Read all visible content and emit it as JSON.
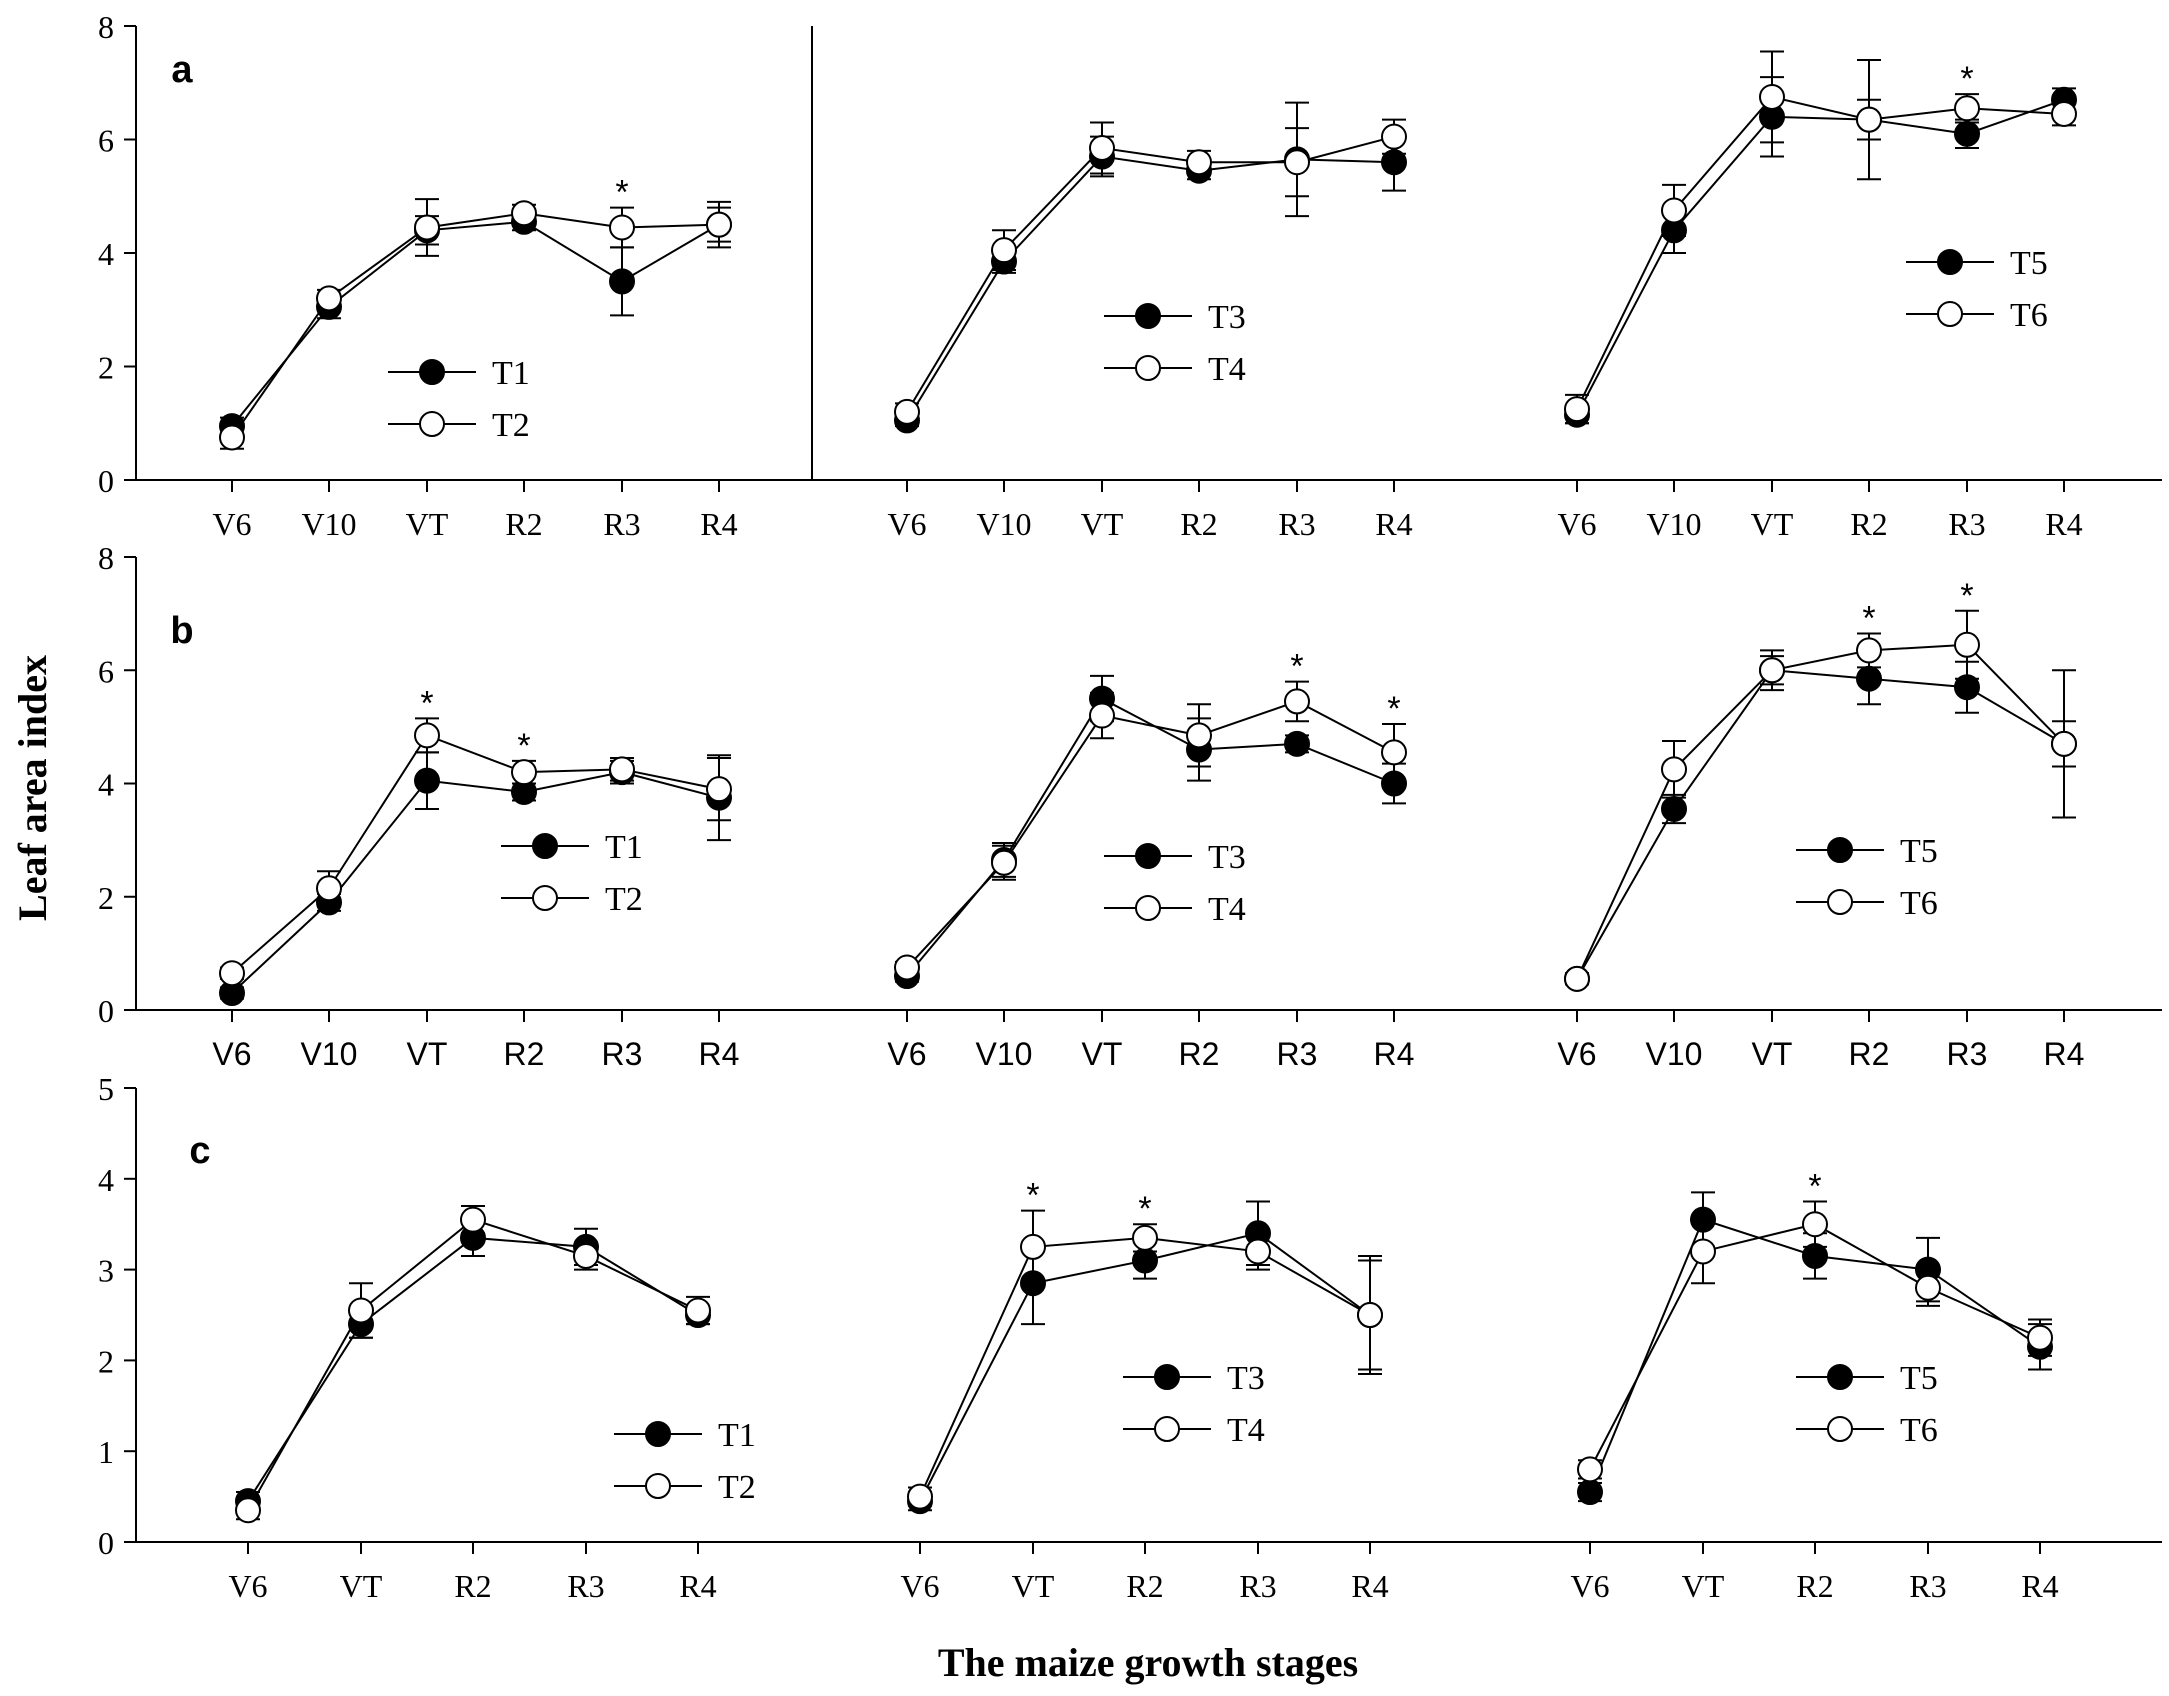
{
  "chart_data": {
    "type": "line",
    "ylabel": "Leaf area index",
    "xlabel": "The maize growth stages",
    "significance_marker": "*",
    "colors": {
      "filled": "#000000",
      "open": "#ffffff",
      "line": "#000000"
    },
    "rows": [
      {
        "label": "a",
        "ylim": [
          0,
          8
        ],
        "yticks": [
          "0",
          "2",
          "4",
          "6",
          "8"
        ],
        "categories": [
          "V6",
          "V10",
          "VT",
          "R2",
          "R3",
          "R4"
        ],
        "panels": [
          {
            "legend_position": "center-bottom",
            "series": [
              {
                "name": "T1",
                "marker": "filled",
                "values": [
                  0.95,
                  3.05,
                  4.4,
                  4.55,
                  3.5,
                  4.5
                ],
                "errors": [
                  0.15,
                  0.2,
                  0.25,
                  0.15,
                  0.6,
                  0.3
                ]
              },
              {
                "name": "T2",
                "marker": "open",
                "values": [
                  0.75,
                  3.2,
                  4.45,
                  4.7,
                  4.45,
                  4.5
                ],
                "errors": [
                  0.2,
                  0.15,
                  0.5,
                  0.15,
                  0.35,
                  0.4
                ]
              }
            ],
            "significant": [
              "R3"
            ]
          },
          {
            "legend_position": "center",
            "series": [
              {
                "name": "T3",
                "marker": "filled",
                "values": [
                  1.05,
                  3.85,
                  5.7,
                  5.45,
                  5.65,
                  5.6
                ],
                "errors": [
                  0.1,
                  0.2,
                  0.35,
                  0.15,
                  1.0,
                  0.5
                ]
              },
              {
                "name": "T4",
                "marker": "open",
                "values": [
                  1.2,
                  4.05,
                  5.85,
                  5.6,
                  5.6,
                  6.05
                ],
                "errors": [
                  0.15,
                  0.35,
                  0.45,
                  0.2,
                  0.6,
                  0.3
                ]
              }
            ],
            "significant": []
          },
          {
            "legend_position": "right",
            "series": [
              {
                "name": "T5",
                "marker": "filled",
                "values": [
                  1.15,
                  4.4,
                  6.4,
                  6.35,
                  6.1,
                  6.7
                ],
                "errors": [
                  0.15,
                  0.4,
                  0.7,
                  1.05,
                  0.25,
                  0.2
                ]
              },
              {
                "name": "T6",
                "marker": "open",
                "values": [
                  1.25,
                  4.75,
                  6.75,
                  6.35,
                  6.55,
                  6.45
                ],
                "errors": [
                  0.25,
                  0.45,
                  0.8,
                  0.35,
                  0.25,
                  0.2
                ]
              }
            ],
            "significant": [
              "R3"
            ]
          }
        ]
      },
      {
        "label": "b",
        "ylim": [
          0,
          8
        ],
        "yticks": [
          "0",
          "2",
          "4",
          "6",
          "8"
        ],
        "categories": [
          "V6",
          "V10",
          "VT",
          "R2",
          "R3",
          "R4"
        ],
        "panels": [
          {
            "legend_position": "right-center",
            "series": [
              {
                "name": "T1",
                "marker": "filled",
                "values": [
                  0.3,
                  1.9,
                  4.05,
                  3.85,
                  4.2,
                  3.75
                ],
                "errors": [
                  0.1,
                  0.15,
                  0.5,
                  0.15,
                  0.2,
                  0.75
                ]
              },
              {
                "name": "T2",
                "marker": "open",
                "values": [
                  0.65,
                  2.15,
                  4.85,
                  4.2,
                  4.25,
                  3.9
                ],
                "errors": [
                  0.1,
                  0.3,
                  0.3,
                  0.2,
                  0.2,
                  0.55
                ]
              }
            ],
            "significant": [
              "VT",
              "R2"
            ]
          },
          {
            "legend_position": "center",
            "series": [
              {
                "name": "T3",
                "marker": "filled",
                "values": [
                  0.6,
                  2.65,
                  5.5,
                  4.6,
                  4.7,
                  4.0
                ],
                "errors": [
                  0.1,
                  0.3,
                  0.4,
                  0.55,
                  0.15,
                  0.35
                ]
              },
              {
                "name": "T4",
                "marker": "open",
                "values": [
                  0.75,
                  2.6,
                  5.2,
                  4.85,
                  5.45,
                  4.55
                ],
                "errors": [
                  0.1,
                  0.3,
                  0.4,
                  0.55,
                  0.35,
                  0.5
                ]
              }
            ],
            "significant": [
              "R3",
              "R4"
            ]
          },
          {
            "legend_position": "right",
            "series": [
              {
                "name": "T5",
                "marker": "filled",
                "values": [
                  0.55,
                  3.55,
                  6.0,
                  5.85,
                  5.7,
                  4.7
                ],
                "errors": [
                  0.1,
                  0.25,
                  0.25,
                  0.45,
                  0.45,
                  1.3
                ]
              },
              {
                "name": "T6",
                "marker": "open",
                "values": [
                  0.55,
                  4.25,
                  6.0,
                  6.35,
                  6.45,
                  4.7
                ],
                "errors": [
                  0.1,
                  0.5,
                  0.35,
                  0.3,
                  0.6,
                  0.4
                ]
              }
            ],
            "significant": [
              "R2",
              "R3"
            ]
          }
        ]
      },
      {
        "label": "c",
        "ylim": [
          0,
          5
        ],
        "yticks": [
          "0",
          "1",
          "2",
          "3",
          "4",
          "5"
        ],
        "categories": [
          "V6",
          "VT",
          "R2",
          "R3",
          "R4"
        ],
        "panels": [
          {
            "legend_position": "center-bottom",
            "series": [
              {
                "name": "T1",
                "marker": "filled",
                "values": [
                  0.45,
                  2.4,
                  3.35,
                  3.25,
                  2.5
                ],
                "errors": [
                  0.1,
                  0.15,
                  0.2,
                  0.2,
                  0.1
                ]
              },
              {
                "name": "T2",
                "marker": "open",
                "values": [
                  0.35,
                  2.55,
                  3.55,
                  3.15,
                  2.55
                ],
                "errors": [
                  0.1,
                  0.3,
                  0.15,
                  0.15,
                  0.15
                ]
              }
            ],
            "significant": []
          },
          {
            "legend_position": "center",
            "series": [
              {
                "name": "T3",
                "marker": "filled",
                "values": [
                  0.45,
                  2.85,
                  3.1,
                  3.4,
                  2.5
                ],
                "errors": [
                  0.1,
                  0.45,
                  0.2,
                  0.35,
                  0.65
                ]
              },
              {
                "name": "T4",
                "marker": "open",
                "values": [
                  0.5,
                  3.25,
                  3.35,
                  3.2,
                  2.5
                ],
                "errors": [
                  0.1,
                  0.4,
                  0.15,
                  0.2,
                  0.6
                ]
              }
            ],
            "significant": [
              "VT",
              "R2"
            ]
          },
          {
            "legend_position": "right",
            "series": [
              {
                "name": "T5",
                "marker": "filled",
                "values": [
                  0.55,
                  3.55,
                  3.15,
                  3.0,
                  2.15
                ],
                "errors": [
                  0.1,
                  0.3,
                  0.25,
                  0.35,
                  0.25
                ]
              },
              {
                "name": "T6",
                "marker": "open",
                "values": [
                  0.8,
                  3.2,
                  3.5,
                  2.8,
                  2.25
                ],
                "errors": [
                  0.1,
                  0.35,
                  0.25,
                  0.2,
                  0.2
                ]
              }
            ],
            "significant": [
              "R2"
            ]
          }
        ]
      }
    ]
  }
}
